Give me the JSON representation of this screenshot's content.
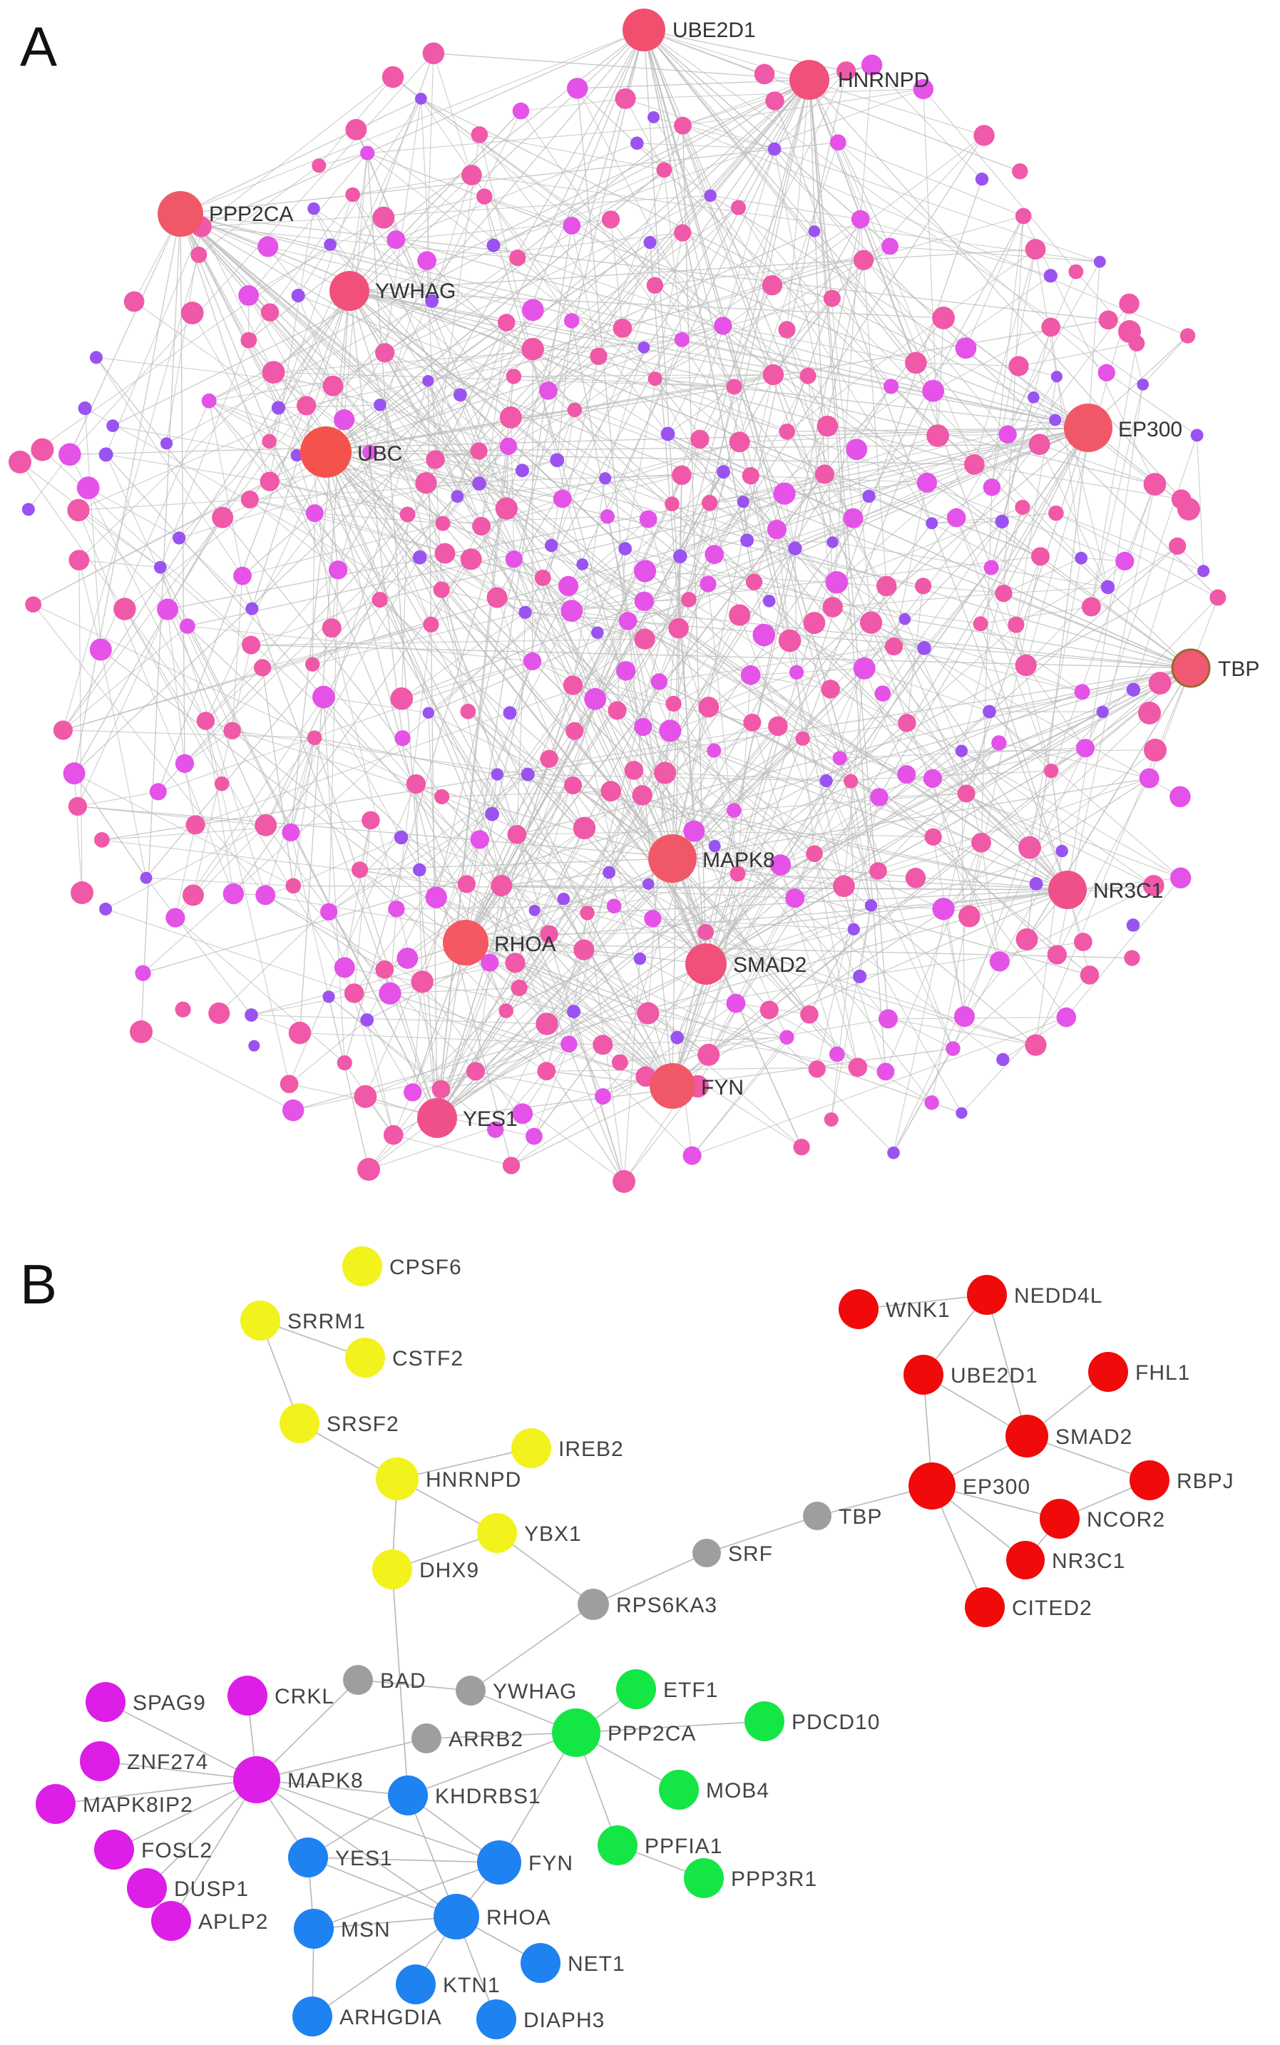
{
  "panelA": {
    "letter": "A",
    "hubs": [
      {
        "label": "UBE2D1",
        "color": "#f0506e"
      },
      {
        "label": "HNRNPD",
        "color": "#f0507a"
      },
      {
        "label": "PPP2CA",
        "color": "#f05868"
      },
      {
        "label": "YWHAG",
        "color": "#f0507a"
      },
      {
        "label": "UBC",
        "color": "#f4524c"
      },
      {
        "label": "EP300",
        "color": "#f05868"
      },
      {
        "label": "TBP",
        "color": "#f05874"
      },
      {
        "label": "MAPK8",
        "color": "#f05868"
      },
      {
        "label": "NR3C1",
        "color": "#f0508a"
      },
      {
        "label": "RHOA",
        "color": "#f45860"
      },
      {
        "label": "SMAD2",
        "color": "#f0507a"
      },
      {
        "label": "FYN",
        "color": "#f05868"
      },
      {
        "label": "YES1",
        "color": "#f0508a"
      }
    ],
    "colors": {
      "edge": "#bdbdbd",
      "pink": "#f058a8",
      "magenta": "#e452e8",
      "violet": "#9a52f0"
    }
  },
  "panelB": {
    "letter": "B",
    "colors": {
      "yellow": "#f2f21c",
      "red": "#f00a0a",
      "gray": "#9e9e9e",
      "magenta": "#dc1ee6",
      "blue": "#1e82f0",
      "green": "#14e646",
      "edge": "#b8b8b8"
    },
    "nodes": [
      {
        "label": "CPSF6",
        "cluster": "yellow"
      },
      {
        "label": "SRRM1",
        "cluster": "yellow"
      },
      {
        "label": "CSTF2",
        "cluster": "yellow"
      },
      {
        "label": "SRSF2",
        "cluster": "yellow"
      },
      {
        "label": "IREB2",
        "cluster": "yellow"
      },
      {
        "label": "HNRNPD",
        "cluster": "yellow"
      },
      {
        "label": "YBX1",
        "cluster": "yellow"
      },
      {
        "label": "DHX9",
        "cluster": "yellow"
      },
      {
        "label": "WNK1",
        "cluster": "red"
      },
      {
        "label": "NEDD4L",
        "cluster": "red"
      },
      {
        "label": "UBE2D1",
        "cluster": "red"
      },
      {
        "label": "FHL1",
        "cluster": "red"
      },
      {
        "label": "SMAD2",
        "cluster": "red"
      },
      {
        "label": "RBPJ",
        "cluster": "red"
      },
      {
        "label": "EP300",
        "cluster": "red"
      },
      {
        "label": "NCOR2",
        "cluster": "red"
      },
      {
        "label": "NR3C1",
        "cluster": "red"
      },
      {
        "label": "CITED2",
        "cluster": "red"
      },
      {
        "label": "TBP",
        "cluster": "gray"
      },
      {
        "label": "SRF",
        "cluster": "gray"
      },
      {
        "label": "RPS6KA3",
        "cluster": "gray"
      },
      {
        "label": "BAD",
        "cluster": "gray"
      },
      {
        "label": "YWHAG",
        "cluster": "gray"
      },
      {
        "label": "ARRB2",
        "cluster": "gray"
      },
      {
        "label": "SPAG9",
        "cluster": "magenta"
      },
      {
        "label": "CRKL",
        "cluster": "magenta"
      },
      {
        "label": "ZNF274",
        "cluster": "magenta"
      },
      {
        "label": "MAPK8",
        "cluster": "magenta"
      },
      {
        "label": "MAPK8IP2",
        "cluster": "magenta"
      },
      {
        "label": "FOSL2",
        "cluster": "magenta"
      },
      {
        "label": "DUSP1",
        "cluster": "magenta"
      },
      {
        "label": "APLP2",
        "cluster": "magenta"
      },
      {
        "label": "KHDRBS1",
        "cluster": "blue"
      },
      {
        "label": "YES1",
        "cluster": "blue"
      },
      {
        "label": "FYN",
        "cluster": "blue"
      },
      {
        "label": "MSN",
        "cluster": "blue"
      },
      {
        "label": "RHOA",
        "cluster": "blue"
      },
      {
        "label": "NET1",
        "cluster": "blue"
      },
      {
        "label": "KTN1",
        "cluster": "blue"
      },
      {
        "label": "ARHGDIA",
        "cluster": "blue"
      },
      {
        "label": "DIAPH3",
        "cluster": "blue"
      },
      {
        "label": "ETF1",
        "cluster": "green"
      },
      {
        "label": "PPP2CA",
        "cluster": "green"
      },
      {
        "label": "PDCD10",
        "cluster": "green"
      },
      {
        "label": "MOB4",
        "cluster": "green"
      },
      {
        "label": "PPFIA1",
        "cluster": "green"
      },
      {
        "label": "PPP3R1",
        "cluster": "green"
      }
    ],
    "edges": [
      [
        "SRRM1",
        "CSTF2"
      ],
      [
        "SRRM1",
        "SRSF2"
      ],
      [
        "SRSF2",
        "HNRNPD"
      ],
      [
        "HNRNPD",
        "IREB2"
      ],
      [
        "HNRNPD",
        "YBX1"
      ],
      [
        "HNRNPD",
        "DHX9"
      ],
      [
        "YBX1",
        "DHX9"
      ],
      [
        "YBX1",
        "RPS6KA3"
      ],
      [
        "DHX9",
        "KHDRBS1"
      ],
      [
        "RPS6KA3",
        "SRF"
      ],
      [
        "SRF",
        "TBP"
      ],
      [
        "TBP",
        "EP300"
      ],
      [
        "RPS6KA3",
        "YWHAG"
      ],
      [
        "WNK1",
        "NEDD4L"
      ],
      [
        "NEDD4L",
        "UBE2D1"
      ],
      [
        "NEDD4L",
        "SMAD2"
      ],
      [
        "UBE2D1",
        "SMAD2"
      ],
      [
        "UBE2D1",
        "EP300"
      ],
      [
        "FHL1",
        "SMAD2"
      ],
      [
        "SMAD2",
        "EP300"
      ],
      [
        "SMAD2",
        "RBPJ"
      ],
      [
        "RBPJ",
        "NCOR2"
      ],
      [
        "EP300",
        "NCOR2"
      ],
      [
        "EP300",
        "NR3C1"
      ],
      [
        "EP300",
        "CITED2"
      ],
      [
        "NCOR2",
        "NR3C1"
      ],
      [
        "BAD",
        "YWHAG"
      ],
      [
        "BAD",
        "MAPK8"
      ],
      [
        "YWHAG",
        "PPP2CA"
      ],
      [
        "ARRB2",
        "MAPK8"
      ],
      [
        "ARRB2",
        "PPP2CA"
      ],
      [
        "ETF1",
        "PPP2CA"
      ],
      [
        "PPP2CA",
        "PDCD10"
      ],
      [
        "PPP2CA",
        "MOB4"
      ],
      [
        "PPP2CA",
        "PPFIA1"
      ],
      [
        "PPFIA1",
        "PPP3R1"
      ],
      [
        "PPP2CA",
        "KHDRBS1"
      ],
      [
        "PPP2CA",
        "FYN"
      ],
      [
        "CRKL",
        "MAPK8"
      ],
      [
        "SPAG9",
        "MAPK8"
      ],
      [
        "ZNF274",
        "MAPK8"
      ],
      [
        "MAPK8IP2",
        "MAPK8"
      ],
      [
        "FOSL2",
        "MAPK8"
      ],
      [
        "DUSP1",
        "MAPK8"
      ],
      [
        "APLP2",
        "MAPK8"
      ],
      [
        "MAPK8",
        "KHDRBS1"
      ],
      [
        "MAPK8",
        "YES1"
      ],
      [
        "MAPK8",
        "RHOA"
      ],
      [
        "MAPK8",
        "FYN"
      ],
      [
        "KHDRBS1",
        "YES1"
      ],
      [
        "KHDRBS1",
        "FYN"
      ],
      [
        "KHDRBS1",
        "RHOA"
      ],
      [
        "YES1",
        "RHOA"
      ],
      [
        "YES1",
        "FYN"
      ],
      [
        "YES1",
        "MSN"
      ],
      [
        "FYN",
        "RHOA"
      ],
      [
        "RHOA",
        "MSN"
      ],
      [
        "RHOA",
        "NET1"
      ],
      [
        "RHOA",
        "KTN1"
      ],
      [
        "RHOA",
        "ARHGDIA"
      ],
      [
        "RHOA",
        "DIAPH3"
      ],
      [
        "MSN",
        "ARHGDIA"
      ],
      [
        "FYN",
        "MSN"
      ]
    ]
  }
}
